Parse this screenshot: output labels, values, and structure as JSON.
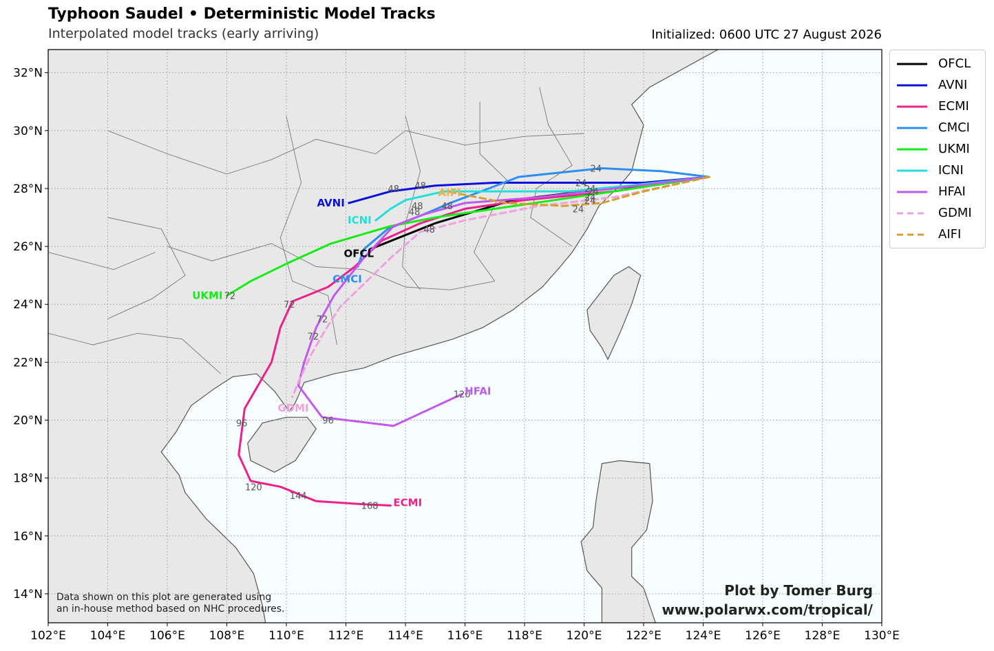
{
  "header": {
    "title": "Typhoon Saudel • Deterministic Model Tracks",
    "subtitle": "Interpolated model tracks (early arriving)",
    "initialized": "Initialized: 0600 UTC 27 August 2026"
  },
  "footer": {
    "note_line1": "Data shown on this plot are generated using",
    "note_line2": "an in-house method based on NHC procedures.",
    "credit_line1": "Plot by Tomer Burg",
    "credit_line2": "www.polarwx.com/tropical/"
  },
  "axes": {
    "lon_labels": [
      "102°E",
      "104°E",
      "106°E",
      "108°E",
      "110°E",
      "112°E",
      "114°E",
      "116°E",
      "118°E",
      "120°E",
      "122°E",
      "124°E",
      "126°E",
      "128°E",
      "130°E"
    ],
    "lat_labels": [
      "14°N",
      "16°N",
      "18°N",
      "20°N",
      "22°N",
      "24°N",
      "26°N",
      "28°N",
      "30°N",
      "32°N"
    ]
  },
  "colors": {
    "land": "#e8e8e8",
    "ocean": "#f7fcfd",
    "border": "#555555",
    "grid": "#9a9a9a"
  },
  "map_data": {
    "lon_range": [
      102,
      130
    ],
    "lat_range": [
      13,
      32.8
    ],
    "grid_step": 2,
    "models": [
      {
        "name": "OFCL",
        "color": "#000000",
        "dashed": false,
        "label": "OFCL",
        "label_color": "#000000",
        "points": [
          [
            124.2,
            28.4
          ],
          [
            122,
            28.1
          ],
          [
            120,
            27.9
          ],
          [
            117.6,
            27.6
          ],
          [
            115,
            26.8
          ],
          [
            112.8,
            25.9
          ]
        ],
        "hours": []
      },
      {
        "name": "AVNI",
        "color": "#0a10dd",
        "dashed": false,
        "label": "AVNI",
        "label_color": "#0a10dd",
        "points": [
          [
            124.2,
            28.4
          ],
          [
            122,
            28.2
          ],
          [
            119.8,
            28.2
          ],
          [
            117,
            28.2
          ],
          [
            115,
            28.1
          ],
          [
            113.5,
            27.9
          ],
          [
            112.1,
            27.5
          ]
        ],
        "hours": [
          {
            "h": "24",
            "p": [
              119.9,
              28.2
            ]
          },
          {
            "h": "48",
            "p": [
              114.5,
              28.1
            ]
          },
          {
            "h": "48",
            "p": [
              113.6,
              28.0
            ]
          }
        ]
      },
      {
        "name": "ECMI",
        "color": "#ee1f8c",
        "dashed": false,
        "label": "ECMI",
        "label_color": "#ee1f8c",
        "points": [
          [
            124.2,
            28.4
          ],
          [
            121,
            27.9
          ],
          [
            118,
            27.6
          ],
          [
            116,
            27.3
          ],
          [
            114.5,
            26.8
          ],
          [
            113.2,
            26.2
          ],
          [
            112.3,
            25.3
          ],
          [
            111.4,
            24.6
          ],
          [
            110.2,
            24.1
          ],
          [
            109.8,
            23.2
          ],
          [
            109.5,
            22
          ],
          [
            108.6,
            20.4
          ],
          [
            108.4,
            18.8
          ],
          [
            108.8,
            17.9
          ],
          [
            109.8,
            17.7
          ],
          [
            111,
            17.2
          ],
          [
            112.5,
            17.1
          ],
          [
            113.5,
            17.05
          ]
        ],
        "hours": [
          {
            "h": "72",
            "p": [
              110.1,
              24.0
            ]
          },
          {
            "h": "96",
            "p": [
              108.5,
              19.9
            ]
          },
          {
            "h": "120",
            "p": [
              108.9,
              17.7
            ]
          },
          {
            "h": "144",
            "p": [
              110.4,
              17.4
            ]
          },
          {
            "h": "168",
            "p": [
              112.8,
              17.05
            ]
          }
        ]
      },
      {
        "name": "CMCI",
        "color": "#2c8ef0",
        "dashed": false,
        "label": "CMCI",
        "label_color": "#2c8ef0",
        "points": [
          [
            124.2,
            28.4
          ],
          [
            122.6,
            28.6
          ],
          [
            120.6,
            28.7
          ],
          [
            117.8,
            28.4
          ],
          [
            116.8,
            28
          ],
          [
            115.5,
            27.5
          ],
          [
            114.6,
            27.1
          ],
          [
            113.4,
            26.6
          ],
          [
            112.6,
            25.9
          ],
          [
            112.4,
            25.3
          ]
        ],
        "hours": [
          {
            "h": "24",
            "p": [
              120.4,
              28.7
            ]
          },
          {
            "h": "48",
            "p": [
              115.4,
              27.4
            ]
          }
        ]
      },
      {
        "name": "UKMI",
        "color": "#11ee11",
        "dashed": false,
        "label": "UKMI",
        "label_color": "#11ee11",
        "points": [
          [
            124.2,
            28.4
          ],
          [
            121,
            27.9
          ],
          [
            119,
            27.6
          ],
          [
            117,
            27.3
          ],
          [
            115,
            27
          ],
          [
            113.5,
            26.7
          ],
          [
            111.5,
            26.1
          ],
          [
            110,
            25.4
          ],
          [
            108.8,
            24.8
          ],
          [
            108,
            24.3
          ]
        ],
        "hours": [
          {
            "h": "24",
            "p": [
              120.2,
              27.7
            ]
          },
          {
            "h": "72",
            "p": [
              108.1,
              24.3
            ]
          }
        ]
      },
      {
        "name": "ICNI",
        "color": "#22e0d8",
        "dashed": false,
        "label": "ICNI",
        "label_color": "#22e0d8",
        "points": [
          [
            124.2,
            28.4
          ],
          [
            121.5,
            28.1
          ],
          [
            119.5,
            27.9
          ],
          [
            117.5,
            27.9
          ],
          [
            115.3,
            27.9
          ],
          [
            114,
            27.6
          ],
          [
            113.5,
            27.3
          ],
          [
            113,
            26.9
          ]
        ],
        "hours": [
          {
            "h": "24",
            "p": [
              120.2,
              28.0
            ]
          },
          {
            "h": "48",
            "p": [
              114.4,
              27.4
            ]
          }
        ]
      },
      {
        "name": "HFAI",
        "color": "#c158f0",
        "dashed": false,
        "label": "HFAI",
        "label_color": "#c158f0",
        "points": [
          [
            124.2,
            28.4
          ],
          [
            121,
            28
          ],
          [
            118.5,
            27.7
          ],
          [
            116,
            27.5
          ],
          [
            114.6,
            27.1
          ],
          [
            113.6,
            26.7
          ],
          [
            112.6,
            25.6
          ],
          [
            111.6,
            24.3
          ],
          [
            111,
            23.2
          ],
          [
            110.6,
            22
          ],
          [
            110.4,
            21.2
          ],
          [
            111.2,
            20.1
          ],
          [
            113.6,
            19.8
          ],
          [
            115.9,
            20.9
          ]
        ],
        "hours": [
          {
            "h": "24",
            "p": [
              120.3,
              27.9
            ]
          },
          {
            "h": "48",
            "p": [
              114.3,
              27.2
            ]
          },
          {
            "h": "72",
            "p": [
              111.2,
              23.5
            ]
          },
          {
            "h": "96",
            "p": [
              111.4,
              20.0
            ]
          },
          {
            "h": "120",
            "p": [
              115.9,
              20.9
            ]
          }
        ]
      },
      {
        "name": "GDMI",
        "color": "#f0a0dc",
        "dashed": true,
        "label": "GDMI",
        "label_color": "#f0a0dc",
        "points": [
          [
            124.2,
            28.4
          ],
          [
            121,
            27.7
          ],
          [
            118.5,
            27.4
          ],
          [
            116,
            26.9
          ],
          [
            114.5,
            26.5
          ],
          [
            113.5,
            25.6
          ],
          [
            112.6,
            24.7
          ],
          [
            111.8,
            23.9
          ],
          [
            111.3,
            23.1
          ],
          [
            110.8,
            22.2
          ],
          [
            110.4,
            21.3
          ],
          [
            110.2,
            20.8
          ]
        ],
        "hours": [
          {
            "h": "24",
            "p": [
              120.2,
              27.6
            ]
          },
          {
            "h": "48",
            "p": [
              114.8,
              26.6
            ]
          },
          {
            "h": "72",
            "p": [
              110.9,
              22.9
            ]
          }
        ]
      },
      {
        "name": "AIFI",
        "color": "#d4a02a",
        "dashed": true,
        "label": "AIFI",
        "label_color": "#f4b050",
        "points": [
          [
            124.2,
            28.4
          ],
          [
            122,
            27.9
          ],
          [
            120.6,
            27.5
          ],
          [
            119.3,
            27.4
          ],
          [
            117.4,
            27.5
          ],
          [
            115.4,
            27.9
          ]
        ],
        "hours": [
          {
            "h": "24",
            "p": [
              119.8,
              27.3
            ]
          }
        ]
      }
    ]
  }
}
